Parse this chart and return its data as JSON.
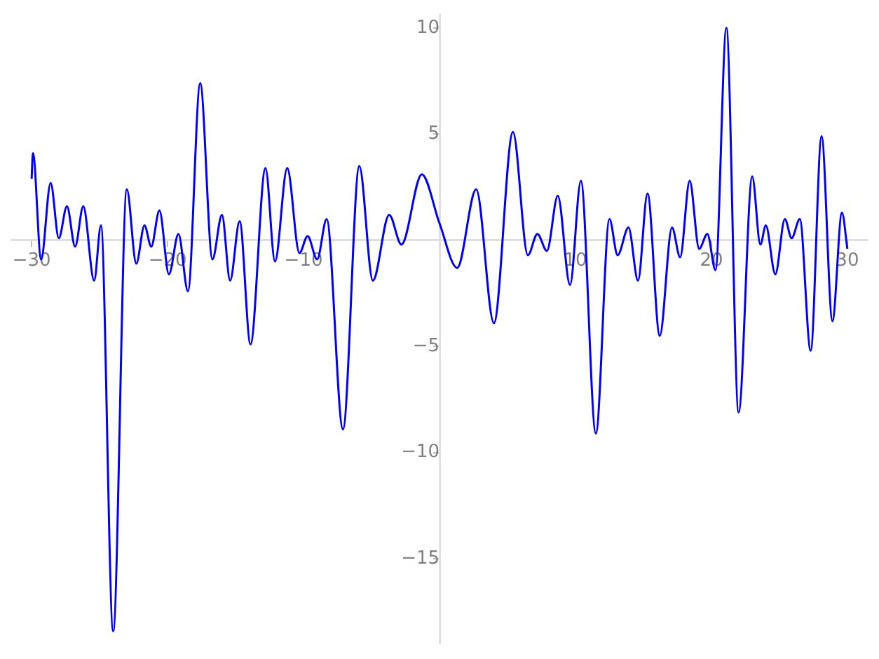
{
  "chart_data": {
    "type": "line",
    "marker": "none",
    "line_style": "solid",
    "grid": false,
    "legend": false,
    "xlim": [
      -31.5,
      31.5
    ],
    "ylim": [
      -19,
      10.6
    ],
    "xticks": [
      -30,
      -20,
      -10,
      10,
      20,
      30
    ],
    "yticks": [
      -15,
      -10,
      -5,
      5,
      10
    ],
    "series": [
      {
        "color": "#0000ff",
        "x": [
          -30,
          -29.9,
          -29.3,
          -28.6,
          -28.0,
          -27.4,
          -26.8,
          -26.2,
          -25.4,
          -24.9,
          -24.0,
          -23.0,
          -22.3,
          -21.7,
          -21.2,
          -20.6,
          -19.9,
          -19.2,
          -18.5,
          -17.6,
          -16.7,
          -16.0,
          -15.4,
          -14.7,
          -13.9,
          -12.8,
          -12.1,
          -11.2,
          -10.3,
          -9.7,
          -9.0,
          -8.3,
          -7.1,
          -5.9,
          -4.9,
          -3.7,
          -2.8,
          -1.3,
          0,
          1.3,
          2.7,
          4.0,
          5.4,
          6.5,
          7.2,
          7.9,
          8.7,
          9.6,
          10.4,
          11.5,
          12.5,
          13.1,
          13.9,
          14.6,
          15.3,
          16.2,
          17.1,
          17.7,
          18.4,
          19.1,
          19.7,
          20.3,
          21.1,
          22.0,
          23.0,
          23.6,
          24.0,
          24.7,
          25.4,
          25.9,
          26.5,
          27.3,
          28.1,
          28.9,
          29.6,
          30
        ],
        "values": [
          2.9,
          4.1,
          -0.9,
          2.7,
          0.1,
          1.6,
          -0.3,
          1.6,
          -1.9,
          0.7,
          -18.4,
          2.4,
          -1.1,
          0.7,
          -0.3,
          1.4,
          -1.6,
          0.3,
          -2.4,
          7.4,
          -0.9,
          1.2,
          -1.9,
          0.9,
          -4.9,
          3.4,
          -1.0,
          3.4,
          -0.6,
          0.2,
          -0.9,
          1.0,
          -8.9,
          3.5,
          -1.9,
          1.2,
          -0.2,
          3.1,
          0.8,
          -1.3,
          2.4,
          -3.9,
          5.1,
          -0.7,
          0.3,
          -0.5,
          2.1,
          -2.1,
          2.8,
          -9.1,
          1.0,
          -0.7,
          0.6,
          -1.9,
          2.2,
          -4.5,
          0.6,
          -0.8,
          2.8,
          -0.4,
          0.3,
          -1.4,
          10.0,
          -8.1,
          3.0,
          -0.2,
          0.7,
          -1.6,
          1.0,
          0.1,
          1.0,
          -5.2,
          4.9,
          -3.8,
          1.3,
          -0.4
        ]
      }
    ]
  }
}
